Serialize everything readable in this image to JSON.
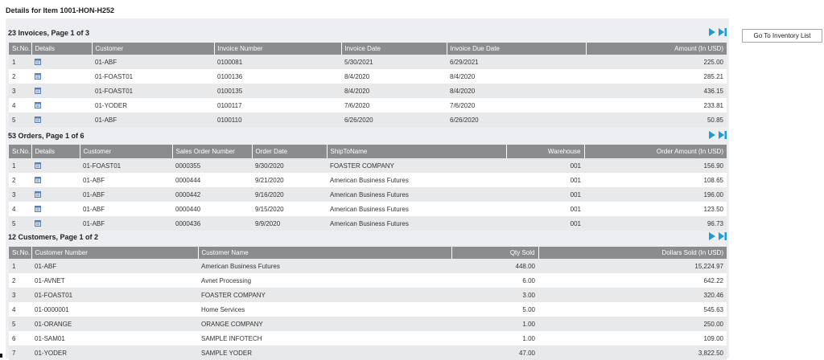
{
  "page_title": "Details for Item 1001-HON-H252",
  "goto_button": "Go To Inventory List",
  "colors": {
    "header_bg": "#8a8c8e",
    "panel_bg": "#eceef1",
    "pager_blue": "#1d9cd3",
    "row_alt": "#e8e9eb"
  },
  "invoices": {
    "title": "23 Invoices, Page 1 of 3",
    "headers": [
      "Sr.No.",
      "Details",
      "Customer",
      "Invoice Number",
      "Invoice Date",
      "Invoice Due Date",
      "Amount (In USD)"
    ],
    "rows": [
      [
        "1",
        "",
        "01-ABF",
        "0100081",
        "5/30/2021",
        "6/29/2021",
        "225.00"
      ],
      [
        "2",
        "",
        "01-FOAST01",
        "0100136",
        "8/4/2020",
        "8/4/2020",
        "285.21"
      ],
      [
        "3",
        "",
        "01-FOAST01",
        "0100135",
        "8/4/2020",
        "8/4/2020",
        "436.15"
      ],
      [
        "4",
        "",
        "01-YODER",
        "0100117",
        "7/6/2020",
        "7/6/2020",
        "233.81"
      ],
      [
        "5",
        "",
        "01-ABF",
        "0100110",
        "6/26/2020",
        "6/26/2020",
        "50.85"
      ]
    ]
  },
  "orders": {
    "title": "53 Orders, Page 1 of 6",
    "headers": [
      "Sr.No.",
      "Details",
      "Customer",
      "Sales Order Number",
      "Order Date",
      "ShipToName",
      "Warehouse",
      "Order Amount (In USD)"
    ],
    "rows": [
      [
        "1",
        "",
        "01-FOAST01",
        "0000355",
        "9/30/2020",
        "FOASTER COMPANY",
        "001",
        "156.90"
      ],
      [
        "2",
        "",
        "01-ABF",
        "0000444",
        "9/21/2020",
        "American Business Futures",
        "001",
        "108.65"
      ],
      [
        "3",
        "",
        "01-ABF",
        "0000442",
        "9/16/2020",
        "American Business Futures",
        "001",
        "196.00"
      ],
      [
        "4",
        "",
        "01-ABF",
        "0000440",
        "9/15/2020",
        "American Business Futures",
        "001",
        "123.50"
      ],
      [
        "5",
        "",
        "01-ABF",
        "0000436",
        "9/9/2020",
        "American Business Futures",
        "001",
        "96.73"
      ]
    ]
  },
  "customers": {
    "title": "12 Customers, Page 1 of 2",
    "headers": [
      "Sr.No.",
      "Customer Number",
      "Customer Name",
      "Qty Sold",
      "Dollars Sold (In USD)"
    ],
    "rows": [
      [
        "1",
        "01-ABF",
        "American Business Futures",
        "448.00",
        "15,224.97"
      ],
      [
        "2",
        "01-AVNET",
        "Avnet Processing",
        "6.00",
        "642.22"
      ],
      [
        "3",
        "01-FOAST01",
        "FOASTER COMPANY",
        "3.00",
        "320.46"
      ],
      [
        "4",
        "01-0000001",
        "Home Services",
        "5.00",
        "545.63"
      ],
      [
        "5",
        "01-ORANGE",
        "ORANGE COMPANY",
        "1.00",
        "250.00"
      ],
      [
        "6",
        "01-SAM01",
        "SAMPLE INFOTECH",
        "1.00",
        "109.00"
      ],
      [
        "7",
        "01-YODER",
        "SAMPLE YODER",
        "47.00",
        "3,822.50"
      ]
    ]
  }
}
